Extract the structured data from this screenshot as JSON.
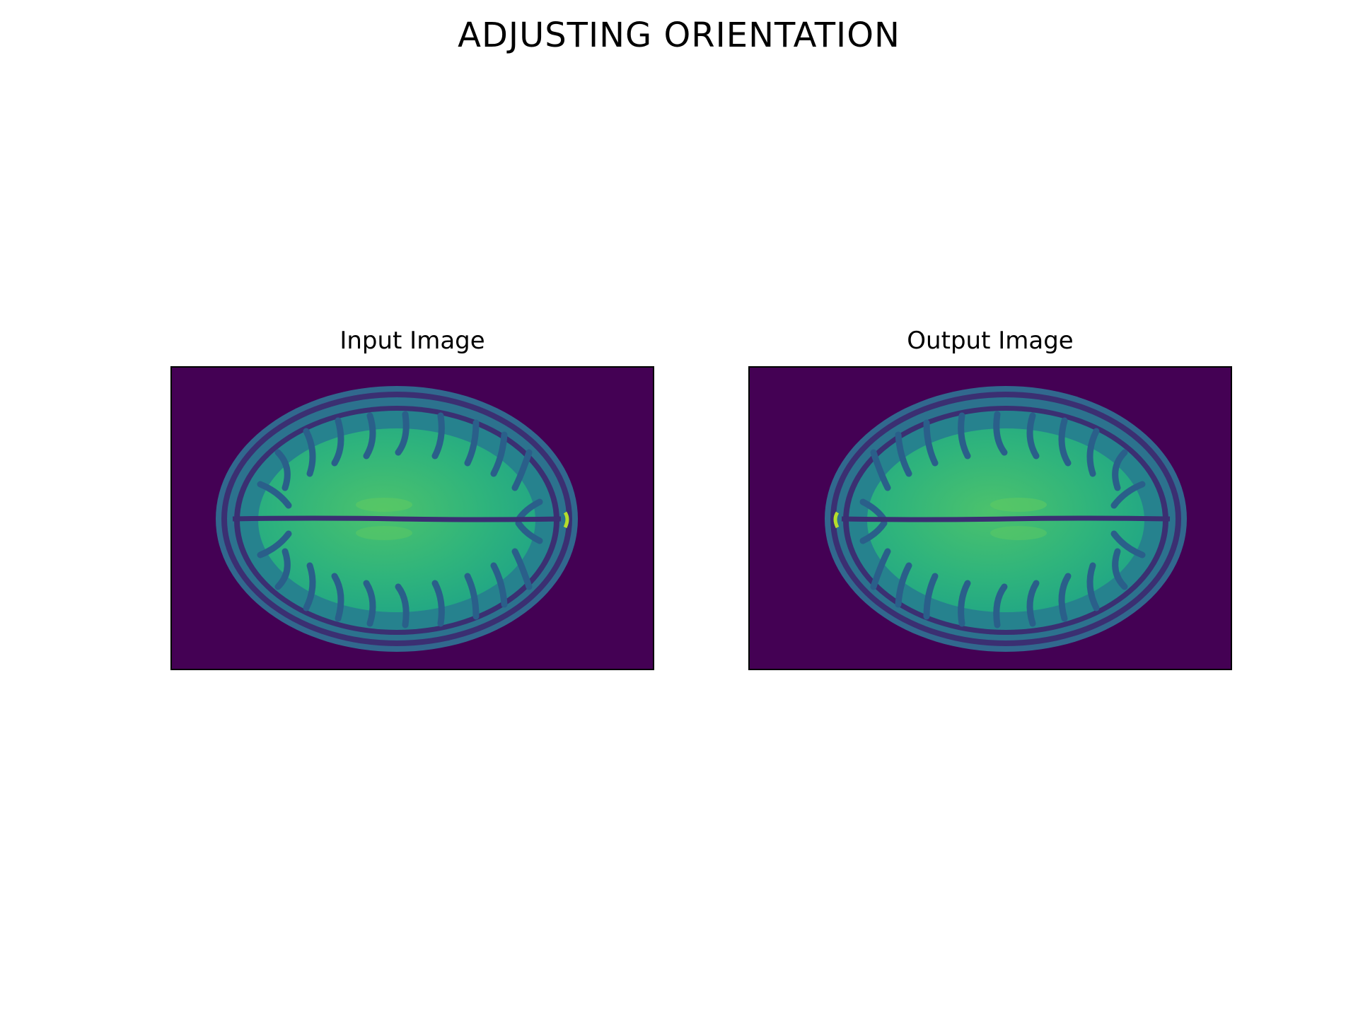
{
  "figure": {
    "title": "ADJUSTING ORIENTATION"
  },
  "panels": [
    {
      "title": "Input Image",
      "image": "axial-brain-mri-slice",
      "colormap": "viridis"
    },
    {
      "title": "Output Image",
      "image": "axial-brain-mri-slice-flipped-horizontally",
      "colormap": "viridis"
    }
  ],
  "colors": {
    "background": "#440154",
    "skull": "#31688e",
    "gray_matter": "#26828e",
    "white_matter": "#2fb47c",
    "white_matter_bright": "#5ec962",
    "dark_gap": "#3b2f72",
    "highlight": "#b5de2b"
  }
}
